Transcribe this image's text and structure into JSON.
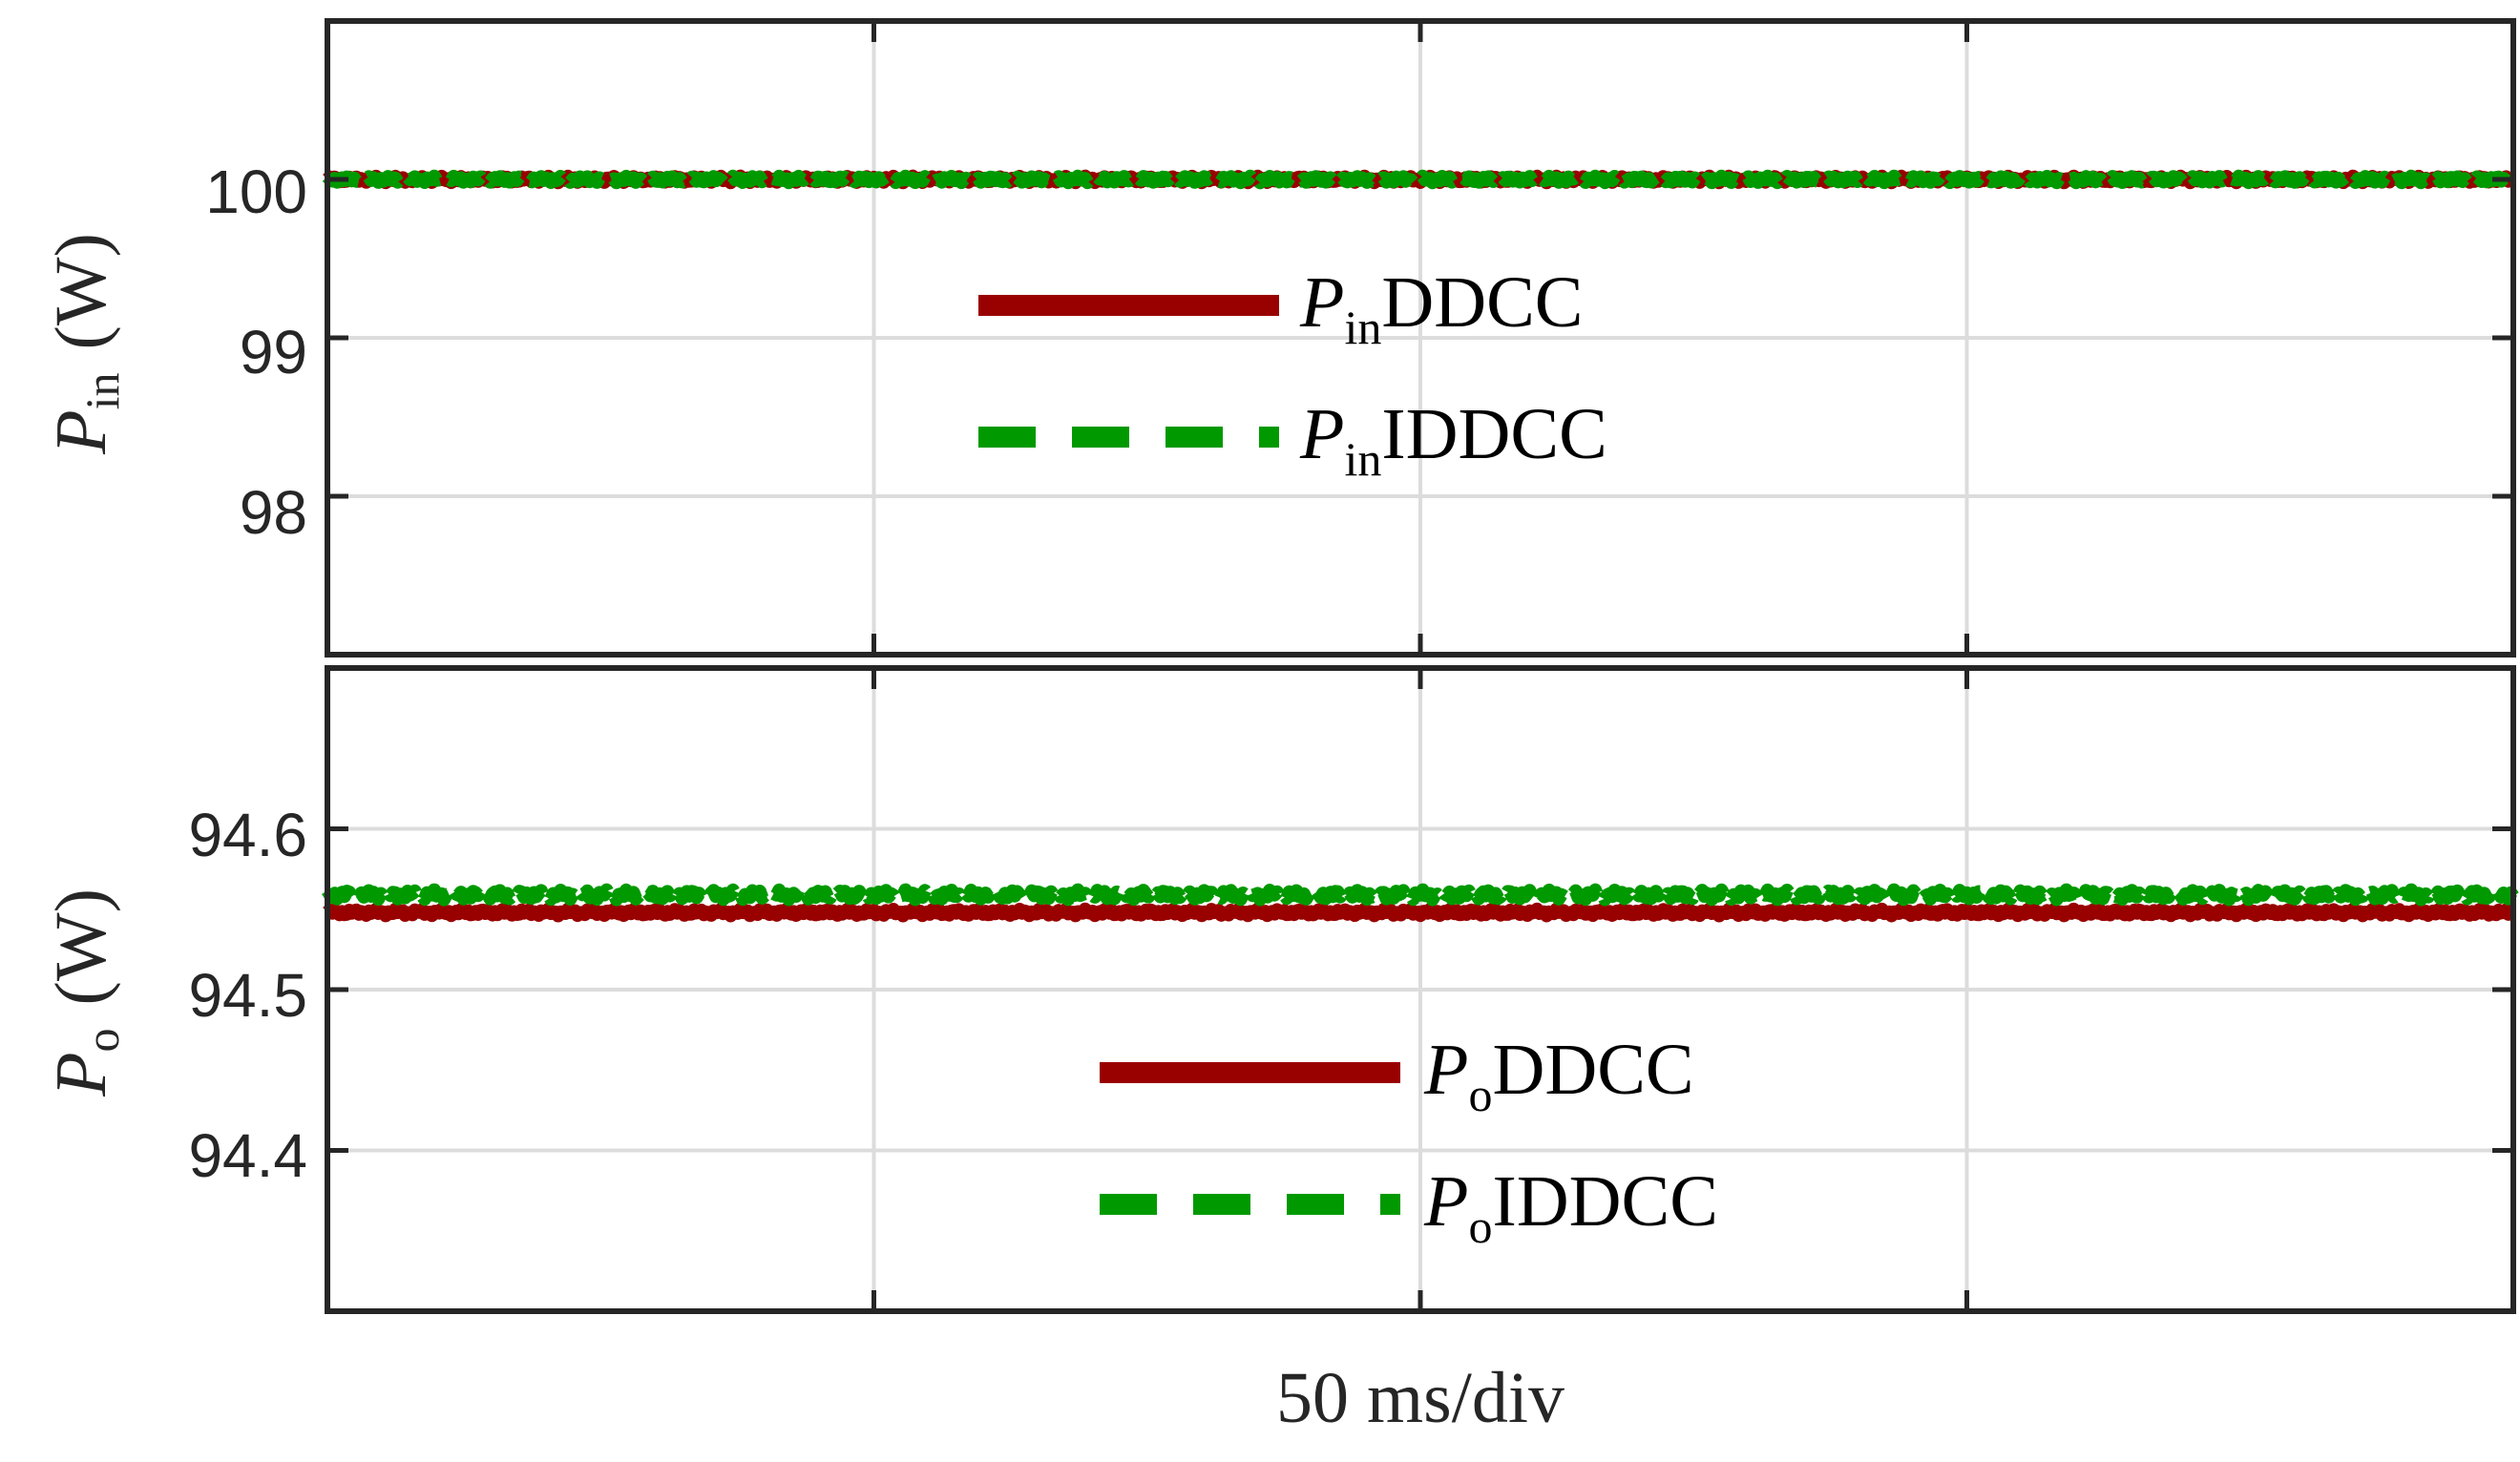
{
  "colors": {
    "ddcc": "#990000",
    "iddcc": "#009900",
    "grid": "#dcdcdc",
    "axis": "#262626"
  },
  "chart_data": [
    {
      "type": "line",
      "ylabel": {
        "symbol": "P",
        "sub": "in",
        "unit": "(W)"
      },
      "ylim": [
        97,
        101
      ],
      "yticks": [
        "100",
        "99",
        "98"
      ],
      "ytick_values": [
        100,
        99,
        98
      ],
      "xlim": [
        0,
        200
      ],
      "xgrid": [
        50,
        100,
        150
      ],
      "series": [
        {
          "name": "P_in DDCC",
          "legend_symbol": "P",
          "legend_sub": "in",
          "legend_text": "DDCC",
          "style": "solid",
          "level": 100.0,
          "ripple": 0.02
        },
        {
          "name": "P_in IDDCC",
          "legend_symbol": "P",
          "legend_sub": "in",
          "legend_text": "IDDCC",
          "style": "dashed",
          "level": 100.0,
          "ripple": 0.02
        }
      ],
      "legend": "center"
    },
    {
      "type": "line",
      "ylabel": {
        "symbol": "P",
        "sub": "o",
        "unit": "(W)"
      },
      "ylim": [
        94.3,
        94.7
      ],
      "yticks": [
        "94.6",
        "94.5",
        "94.4"
      ],
      "ytick_values": [
        94.6,
        94.5,
        94.4
      ],
      "xlim": [
        0,
        200
      ],
      "xgrid": [
        50,
        100,
        150
      ],
      "series": [
        {
          "name": "P_o DDCC",
          "legend_symbol": "P",
          "legend_sub": "o",
          "legend_text": "DDCC",
          "style": "solid",
          "level": 94.548,
          "ripple": 0.002
        },
        {
          "name": "P_o IDDCC",
          "legend_symbol": "P",
          "legend_sub": "o",
          "legend_text": "IDDCC",
          "style": "dashed",
          "level": 94.559,
          "ripple": 0.003
        }
      ],
      "legend": "center-bottom"
    }
  ],
  "xlabel": "50 ms/div"
}
